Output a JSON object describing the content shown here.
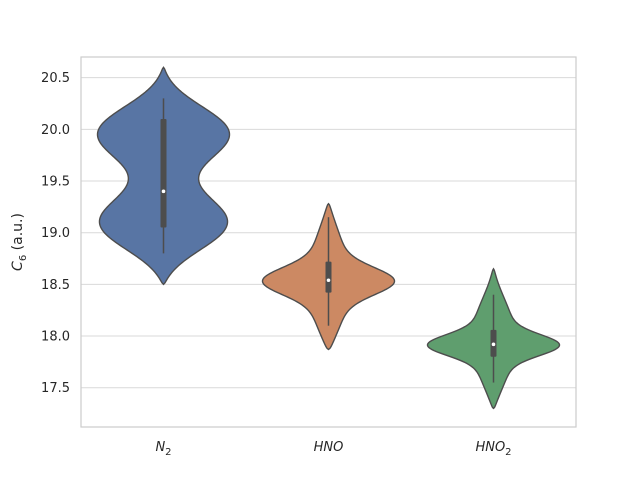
{
  "chart_data": {
    "type": "violin",
    "title": "",
    "xlabel": "",
    "ylabel": {
      "var": "C",
      "sub": "6",
      "rest": " (a.u.)"
    },
    "ylim": [
      17.12,
      20.7
    ],
    "yticks": [
      17.5,
      18.0,
      18.5,
      19.0,
      19.5,
      20.0,
      20.5
    ],
    "ytick_labels": [
      "17.5",
      "18.0",
      "18.5",
      "19.0",
      "19.5",
      "20.0",
      "20.5"
    ],
    "grid": true,
    "categories": [
      {
        "main": "N",
        "sub": "2"
      },
      {
        "main": "HNO",
        "sub": ""
      },
      {
        "main": "HNO",
        "sub": "2"
      }
    ],
    "series": [
      {
        "color": "#5875a4",
        "min": 18.5,
        "max": 20.6,
        "q1": 19.05,
        "median": 19.4,
        "q3": 20.1,
        "whisker_low": 18.8,
        "whisker_high": 20.3,
        "modes": [
          [
            20.0,
            0.28,
            0.95
          ],
          [
            19.05,
            0.28,
            0.95
          ]
        ]
      },
      {
        "color": "#cc8963",
        "min": 17.87,
        "max": 19.28,
        "q1": 18.42,
        "median": 18.54,
        "q3": 18.72,
        "whisker_low": 18.1,
        "whisker_high": 19.15,
        "modes": [
          [
            18.53,
            0.13,
            1.0
          ],
          [
            18.2,
            0.35,
            0.35
          ],
          [
            18.85,
            0.35,
            0.3
          ]
        ]
      },
      {
        "color": "#5f9e6e",
        "min": 17.3,
        "max": 18.65,
        "q1": 17.8,
        "median": 17.92,
        "q3": 18.06,
        "whisker_low": 17.55,
        "whisker_high": 18.4,
        "modes": [
          [
            17.91,
            0.1,
            1.0
          ],
          [
            17.65,
            0.3,
            0.32
          ],
          [
            18.18,
            0.3,
            0.35
          ]
        ]
      }
    ]
  }
}
